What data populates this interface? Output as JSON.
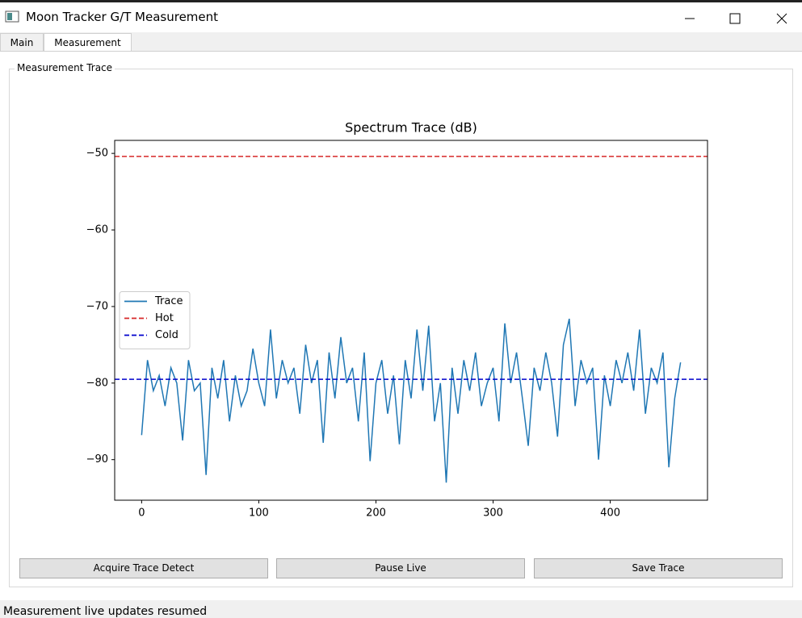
{
  "window": {
    "title": "Moon Tracker G/T Measurement"
  },
  "tabs": [
    "Main",
    "Measurement"
  ],
  "group": {
    "title": "Measurement  Trace"
  },
  "chart_data": {
    "type": "line",
    "title": "Spectrum Trace (dB)",
    "xlim": [
      -23,
      483
    ],
    "ylim": [
      -95.3,
      -48.3
    ],
    "xticks": [
      0,
      100,
      200,
      300,
      400
    ],
    "yticks": [
      {
        "value": -50,
        "label": "−50"
      },
      {
        "value": -60,
        "label": "−60"
      },
      {
        "value": -70,
        "label": "−70"
      },
      {
        "value": -80,
        "label": "−80"
      },
      {
        "value": -90,
        "label": "−90"
      }
    ],
    "legend": "center left",
    "series": [
      {
        "name": "Trace",
        "color": "#1f77b4",
        "x": [
          0,
          5,
          10,
          15,
          20,
          25,
          30,
          35,
          40,
          45,
          50,
          55,
          60,
          65,
          70,
          75,
          80,
          85,
          90,
          95,
          100,
          105,
          110,
          115,
          120,
          125,
          130,
          135,
          140,
          145,
          150,
          155,
          160,
          165,
          170,
          175,
          180,
          185,
          190,
          195,
          200,
          205,
          210,
          215,
          220,
          225,
          230,
          235,
          240,
          245,
          250,
          255,
          260,
          265,
          270,
          275,
          280,
          285,
          290,
          295,
          300,
          305,
          310,
          315,
          320,
          325,
          330,
          335,
          340,
          345,
          350,
          355,
          360,
          365,
          370,
          375,
          380,
          385,
          390,
          395,
          400,
          405,
          410,
          415,
          420,
          425,
          430,
          435,
          440,
          445,
          450,
          455,
          460
        ],
        "values": [
          -86.8,
          -77,
          -81,
          -79,
          -83,
          -78,
          -80,
          -87.5,
          -77,
          -81,
          -80,
          -92,
          -78,
          -82,
          -77,
          -85,
          -79,
          -83,
          -81,
          -75.5,
          -80,
          -83,
          -73,
          -82,
          -77,
          -80,
          -78,
          -84,
          -75,
          -80,
          -77,
          -87.8,
          -76,
          -82,
          -74,
          -80,
          -78,
          -85,
          -76,
          -90.2,
          -80,
          -77,
          -84,
          -79,
          -88,
          -77,
          -82,
          -73,
          -81,
          -72.5,
          -85,
          -80,
          -93,
          -78,
          -84,
          -77,
          -81,
          -76,
          -83,
          -80,
          -78,
          -85,
          -72.2,
          -80,
          -76,
          -82,
          -88.2,
          -78,
          -81,
          -76,
          -80,
          -87,
          -75,
          -71.6,
          -83,
          -77,
          -80,
          -78,
          -90,
          -79,
          -83,
          -77,
          -80,
          -76,
          -81,
          -73,
          -84,
          -78,
          -80,
          -76,
          -91,
          -82,
          -77.3
        ]
      },
      {
        "name": "Hot",
        "color": "#d62728",
        "y": -50.4,
        "dashed": true
      },
      {
        "name": "Cold",
        "color": "#0000cc",
        "y": -79.5,
        "dashed": true
      }
    ]
  },
  "buttons": [
    "Acquire Trace  Detect",
    "Pause Live",
    "Save Trace"
  ],
  "status": "Measurement live updates resumed"
}
